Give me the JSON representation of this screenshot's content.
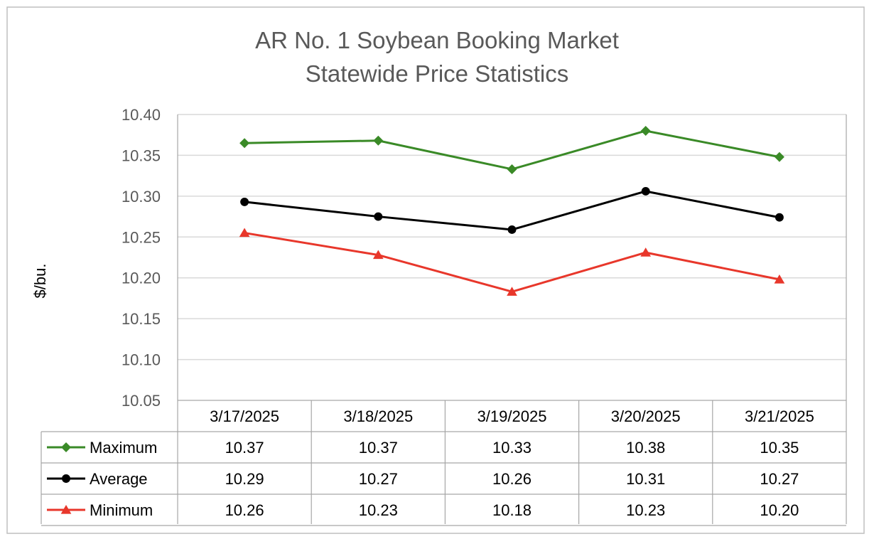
{
  "chart_data": {
    "type": "line",
    "title": "AR No. 1 Soybean Booking Market",
    "subtitle": "Statewide Price Statistics",
    "xlabel": "",
    "ylabel": "$/bu.",
    "ylim": [
      10.05,
      10.4
    ],
    "ytick_step": 0.05,
    "yticks": [
      "10.40",
      "10.35",
      "10.30",
      "10.25",
      "10.20",
      "10.15",
      "10.10",
      "10.05"
    ],
    "grid": true,
    "legend": "data-table-left",
    "categories": [
      "3/17/2025",
      "3/18/2025",
      "3/19/2025",
      "3/20/2025",
      "3/21/2025"
    ],
    "series": [
      {
        "name": "Maximum",
        "marker": "diamond",
        "color": "#3a8a27",
        "values": [
          10.365,
          10.368,
          10.333,
          10.38,
          10.348
        ],
        "table_values": [
          "10.37",
          "10.37",
          "10.33",
          "10.38",
          "10.35"
        ]
      },
      {
        "name": "Average",
        "marker": "circle",
        "color": "#000000",
        "values": [
          10.293,
          10.275,
          10.259,
          10.306,
          10.274
        ],
        "table_values": [
          "10.29",
          "10.27",
          "10.26",
          "10.31",
          "10.27"
        ]
      },
      {
        "name": "Minimum",
        "marker": "triangle",
        "color": "#e8372b",
        "values": [
          10.255,
          10.228,
          10.183,
          10.231,
          10.198
        ],
        "table_values": [
          "10.26",
          "10.23",
          "10.18",
          "10.23",
          "10.20"
        ]
      }
    ]
  }
}
